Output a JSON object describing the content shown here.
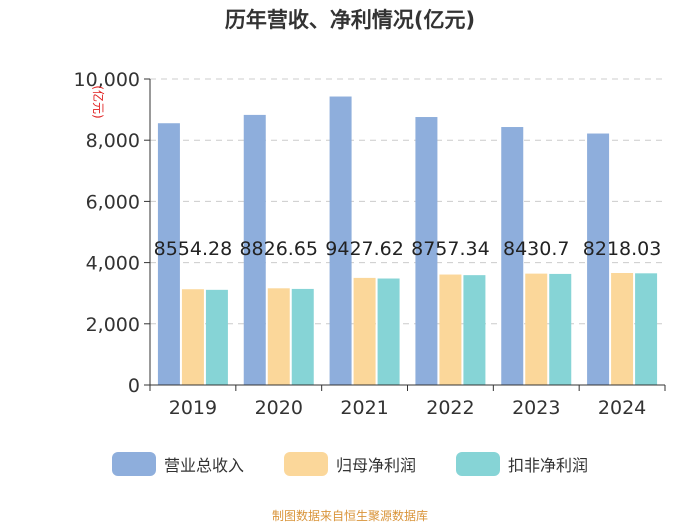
{
  "chart_data": {
    "type": "bar",
    "title": "历年营收、净利情况(亿元)",
    "ylabel": "(亿元)",
    "categories": [
      "2019",
      "2020",
      "2021",
      "2022",
      "2023",
      "2024"
    ],
    "ylim": [
      0,
      10000
    ],
    "yticks": [
      0,
      2000,
      4000,
      6000,
      8000,
      10000
    ],
    "ytick_labels": [
      "0",
      "2,000",
      "4,000",
      "6,000",
      "8,000",
      "10,000"
    ],
    "grid": true,
    "legend_position": "bottom",
    "series": [
      {
        "name": "营业总收入",
        "color": "#8eaedc",
        "values": [
          8554.28,
          8826.65,
          9427.62,
          8757.34,
          8430.7,
          8218.03
        ]
      },
      {
        "name": "归母净利润",
        "color": "#fbd79a",
        "values": [
          3130,
          3160,
          3500,
          3610,
          3640,
          3660
        ]
      },
      {
        "name": "扣非净利润",
        "color": "#86d4d6",
        "values": [
          3110,
          3140,
          3480,
          3590,
          3630,
          3650
        ]
      }
    ],
    "data_labels": [
      "8554.28",
      "8826.65",
      "9427.62",
      "8757.34",
      "8430.7",
      "8218.03"
    ]
  },
  "source_note": "制图数据来自恒生聚源数据库",
  "colors": {
    "ylabel": "#e02020",
    "source_note": "#d9943a"
  }
}
